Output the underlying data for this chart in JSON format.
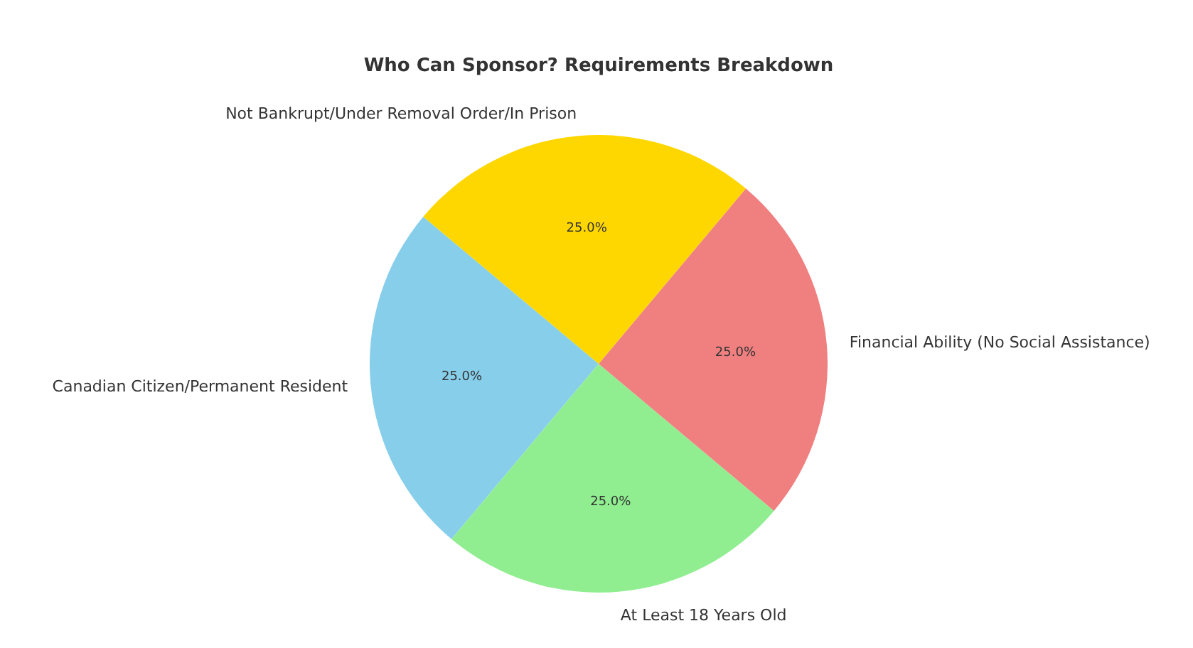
{
  "chart_data": {
    "type": "pie",
    "title": "Who Can Sponsor? Requirements Breakdown",
    "categories": [
      "Canadian Citizen/Permanent Resident",
      "At Least 18 Years Old",
      "Financial Ability (No Social Assistance)",
      "Not Bankrupt/Under Removal Order/In Prison"
    ],
    "values": [
      25,
      25,
      25,
      25
    ],
    "value_labels": [
      "25.0%",
      "25.0%",
      "25.0%",
      "25.0%"
    ],
    "colors": [
      "#87ceeb",
      "#90ee90",
      "#f08080",
      "#ffd700"
    ]
  }
}
